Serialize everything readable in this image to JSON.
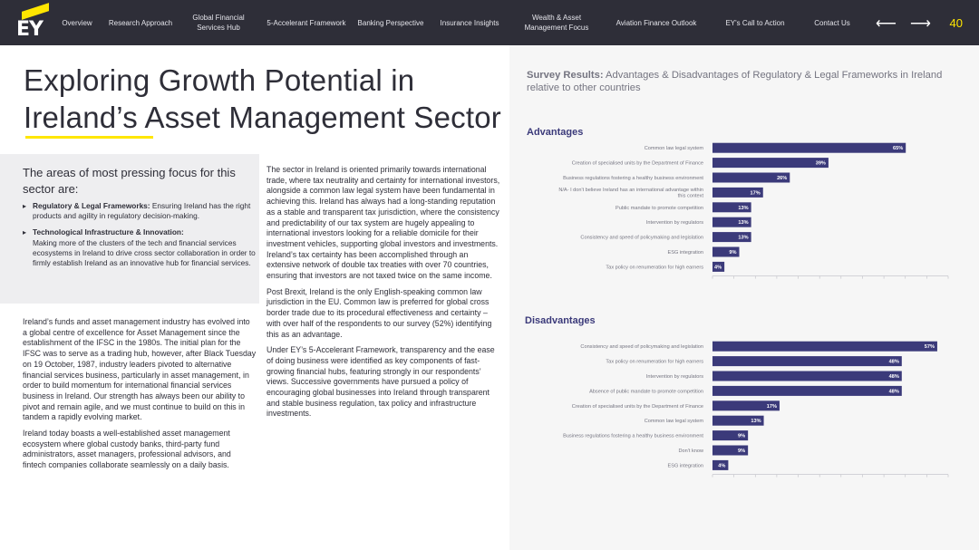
{
  "nav": {
    "items": [
      {
        "label": "Overview"
      },
      {
        "label": "Research Approach"
      },
      {
        "label": "Global Financial\nServices Hub"
      },
      {
        "label": "5-Accelerant Framework"
      },
      {
        "label": "Banking Perspective"
      },
      {
        "label": "Insurance Insights"
      },
      {
        "label": "Wealth & Asset\nManagement Focus"
      },
      {
        "label": "Aviation Finance Outlook"
      },
      {
        "label": "EY's Call to Action"
      },
      {
        "label": "Contact Us"
      }
    ],
    "prev_arrow": "⟵",
    "next_arrow": "⟶",
    "page_number": "40",
    "logo_text": "EY"
  },
  "page": {
    "title_line1": "Exploring Growth Potential in",
    "title_line2": "Ireland’s Asset Management Sector"
  },
  "focus": {
    "heading": "The areas of most pressing focus for this sector are:",
    "bullets": [
      {
        "bold": "Regulatory & Legal Frameworks:",
        "text": " Ensuring Ireland has the right products and agility in regulatory decision-making."
      },
      {
        "bold": "Technological Infrastructure & Innovation:",
        "text": " Making more of the clusters of the tech and financial services ecosystems in Ireland to drive cross sector collaboration in order to firmly establish Ireland as an innovative hub for financial services."
      }
    ]
  },
  "body_left": {
    "p1": "Ireland’s funds and asset management industry has evolved into a global centre of excellence for Asset Management since the establishment of the IFSC in the 1980s.  The initial plan for the IFSC was to serve as a trading hub, however, after Black Tuesday on 19 October, 1987, industry leaders pivoted to alternative financial services business, particularly in asset management, in order to build momentum for international financial services business in Ireland. Our strength has always been our ability to pivot and remain agile, and we must continue to build on this in tandem a rapidly evolving market.",
    "p2": "Ireland today boasts a well-established asset management ecosystem where global custody banks, third-party fund administrators, asset managers, professional advisors, and fintech companies collaborate seamlessly on a daily basis."
  },
  "body_right": {
    "p1": "The sector in Ireland is oriented primarily towards international trade, where tax neutrality and certainty for international investors, alongside a common law legal system have been fundamental in achieving this. Ireland has always had a long-standing reputation as a stable and transparent tax jurisdiction, where the consistency and predictability of our tax system are hugely appealing to international investors looking for a reliable domicile for their investment vehicles, supporting global investors and investments. Ireland’s tax certainty has been accomplished through an extensive network of double tax treaties with over 70 countries, ensuring that investors are not taxed twice on the same income.",
    "p2": "Post Brexit, Ireland is the only English-speaking common law jurisdiction in the EU. Common law is preferred for global cross border trade due to its procedural effectiveness and certainty – with over half of the respondents to our survey (52%) identifying this as an advantage.",
    "p3": "Under EY’s 5-Accelerant Framework, transparency and the ease of doing business were identified as key components of fast-growing financial hubs, featuring strongly in our respondents’ views. Successive governments have pursued a policy of encouraging global businesses into Ireland through transparent and stable business regulation, tax policy and infrastructure investments."
  },
  "survey": {
    "title_bold": "Survey Results:",
    "title_rest": " Advantages & Disadvantages of Regulatory & Legal Frameworks in Ireland relative to other countries"
  },
  "colors": {
    "nav_bg": "#2e2e38",
    "accent_yellow": "#ffe600",
    "bar_color": "#3b3a7a",
    "panel_bg": "#f6f6f6"
  },
  "chart_data": [
    {
      "type": "bar",
      "orientation": "horizontal",
      "title": "Advantages",
      "categories": [
        "Common law legal system",
        "Creation of specialised units by the Department of Finance",
        "Business regulations fostering a healthy business environment",
        "N/A- I don't believe Ireland has an international advantage within this context",
        "Public mandate to promote competition",
        "Intervention by regulators",
        "Consistency and speed of policymaking and legislation",
        "ESG integration",
        "Tax policy on renumeration for high earners"
      ],
      "values": [
        65,
        39,
        26,
        17,
        13,
        13,
        13,
        9,
        4
      ],
      "value_labels": [
        "65%",
        "39%",
        "26%",
        "17%",
        "13%",
        "13%",
        "13%",
        "9%",
        "4%"
      ],
      "xlim": [
        0,
        80
      ],
      "grid": false
    },
    {
      "type": "bar",
      "orientation": "horizontal",
      "title": "Disadvantages",
      "categories": [
        "Consistency and speed of policymaking and legislation",
        "Tax policy on renumeration for high earners",
        "Intervention by regulators",
        "Absence of public mandate to promote competition",
        "Creation of specialised units by the Department of Finance",
        "Common law legal system",
        "Business regulations fostering a healthy business environment",
        "Don't know",
        "ESG integration"
      ],
      "values": [
        57,
        48,
        48,
        48,
        17,
        13,
        9,
        9,
        4
      ],
      "value_labels": [
        "57%",
        "48%",
        "48%",
        "48%",
        "17%",
        "13%",
        "9%",
        "9%",
        "4%"
      ],
      "xlim": [
        0,
        60
      ],
      "grid": false
    }
  ]
}
